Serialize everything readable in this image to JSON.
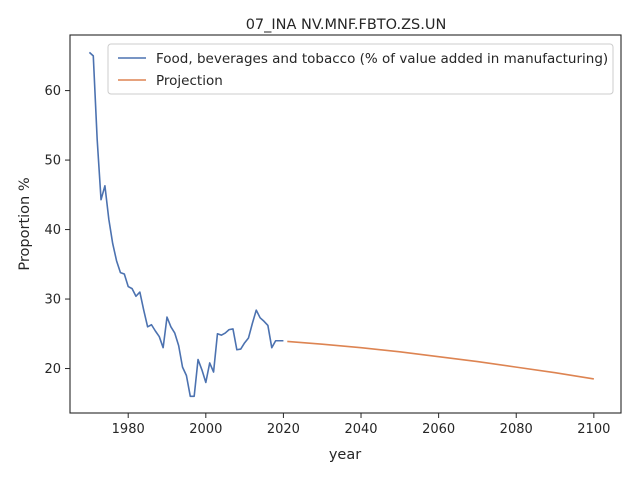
{
  "chart_data": {
    "type": "line",
    "title": "07_INA NV.MNF.FBTO.ZS.UN",
    "xlabel": "year",
    "ylabel": "Proportion %",
    "xlim": [
      1965,
      2107
    ],
    "ylim": [
      13.6,
      68.0
    ],
    "xticks": [
      1980,
      2000,
      2020,
      2040,
      2060,
      2080,
      2100
    ],
    "yticks": [
      20,
      30,
      40,
      50,
      60
    ],
    "grid": false,
    "legend_position": "top-right",
    "colors": {
      "historical": "#4c72b0",
      "projection": "#dd8452"
    },
    "series": [
      {
        "name": "Food, beverages and tobacco (% of value added in manufacturing)",
        "x": [
          1970,
          1971,
          1972,
          1973,
          1974,
          1975,
          1976,
          1977,
          1978,
          1979,
          1980,
          1981,
          1982,
          1983,
          1984,
          1985,
          1986,
          1987,
          1988,
          1989,
          1990,
          1991,
          1992,
          1993,
          1994,
          1995,
          1996,
          1997,
          1998,
          1999,
          2000,
          2001,
          2002,
          2003,
          2004,
          2005,
          2006,
          2007,
          2008,
          2009,
          2010,
          2011,
          2012,
          2013,
          2014,
          2015,
          2016,
          2017,
          2018,
          2019,
          2020
        ],
        "values": [
          65.5,
          65.0,
          53.0,
          44.3,
          46.3,
          41.5,
          38.0,
          35.5,
          33.8,
          33.6,
          31.8,
          31.5,
          30.4,
          31.0,
          28.4,
          26.0,
          26.3,
          25.4,
          24.6,
          23.0,
          27.4,
          26.0,
          25.1,
          23.3,
          20.2,
          19.0,
          16.0,
          16.0,
          21.3,
          19.8,
          18.0,
          20.8,
          19.5,
          25.0,
          24.8,
          25.1,
          25.6,
          25.7,
          22.7,
          22.8,
          23.7,
          24.4,
          26.5,
          28.4,
          27.3,
          26.8,
          26.2,
          23.0,
          24.0,
          24.0,
          24.0
        ]
      },
      {
        "name": "Projection",
        "x": [
          2021,
          2030,
          2040,
          2050,
          2060,
          2070,
          2080,
          2090,
          2100
        ],
        "values": [
          23.9,
          23.5,
          23.0,
          22.4,
          21.7,
          21.0,
          20.2,
          19.4,
          18.5
        ]
      }
    ]
  }
}
